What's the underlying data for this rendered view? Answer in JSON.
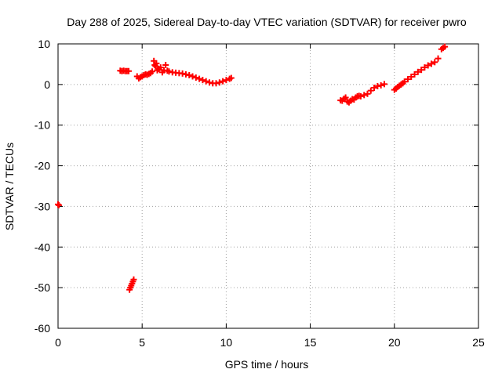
{
  "chart_data": {
    "type": "scatter",
    "title": "Day 288 of 2025, Sidereal Day-to-day VTEC variation (SDTVAR) for receiver pwro",
    "xlabel": "GPS time / hours",
    "ylabel": "SDTVAR / TECUs",
    "xlim": [
      0,
      25
    ],
    "ylim": [
      -60,
      10
    ],
    "x_ticks": [
      0,
      5,
      10,
      15,
      20,
      25
    ],
    "y_ticks": [
      -60,
      -50,
      -40,
      -30,
      -20,
      -10,
      0,
      10
    ],
    "grid": true,
    "marker": "plus",
    "color": "#ff0000",
    "series": [
      {
        "name": "SDTVAR",
        "points": [
          [
            0.0,
            -29.5
          ],
          [
            0.05,
            -29.7
          ],
          [
            3.7,
            3.4
          ],
          [
            3.8,
            3.3
          ],
          [
            3.9,
            3.4
          ],
          [
            4.0,
            3.3
          ],
          [
            4.1,
            3.3
          ],
          [
            4.2,
            3.3
          ],
          [
            4.25,
            -50.5
          ],
          [
            4.3,
            -50.0
          ],
          [
            4.35,
            -49.5
          ],
          [
            4.4,
            -49.0
          ],
          [
            4.45,
            -48.5
          ],
          [
            4.5,
            -48.0
          ],
          [
            4.7,
            2.0
          ],
          [
            4.8,
            1.5
          ],
          [
            4.9,
            1.8
          ],
          [
            5.0,
            2.0
          ],
          [
            5.1,
            2.3
          ],
          [
            5.2,
            2.5
          ],
          [
            5.3,
            2.4
          ],
          [
            5.4,
            2.6
          ],
          [
            5.5,
            2.8
          ],
          [
            5.6,
            3.2
          ],
          [
            5.7,
            5.8
          ],
          [
            5.75,
            4.8
          ],
          [
            5.8,
            4.5
          ],
          [
            5.85,
            5.2
          ],
          [
            5.9,
            3.5
          ],
          [
            6.0,
            3.8
          ],
          [
            6.1,
            4.2
          ],
          [
            6.2,
            3.0
          ],
          [
            6.3,
            3.5
          ],
          [
            6.4,
            4.8
          ],
          [
            6.5,
            3.4
          ],
          [
            6.6,
            3.2
          ],
          [
            6.8,
            3.0
          ],
          [
            7.0,
            2.9
          ],
          [
            7.2,
            2.8
          ],
          [
            7.4,
            2.7
          ],
          [
            7.6,
            2.5
          ],
          [
            7.8,
            2.3
          ],
          [
            8.0,
            2.0
          ],
          [
            8.2,
            1.7
          ],
          [
            8.4,
            1.4
          ],
          [
            8.6,
            1.1
          ],
          [
            8.8,
            0.8
          ],
          [
            9.0,
            0.5
          ],
          [
            9.2,
            0.3
          ],
          [
            9.4,
            0.3
          ],
          [
            9.6,
            0.5
          ],
          [
            9.8,
            0.8
          ],
          [
            10.0,
            1.1
          ],
          [
            10.2,
            1.4
          ],
          [
            10.3,
            1.6
          ],
          [
            16.8,
            -3.9
          ],
          [
            16.9,
            -4.0
          ],
          [
            17.0,
            -3.5
          ],
          [
            17.1,
            -3.2
          ],
          [
            17.2,
            -4.2
          ],
          [
            17.3,
            -4.4
          ],
          [
            17.4,
            -4.0
          ],
          [
            17.5,
            -3.6
          ],
          [
            17.6,
            -3.7
          ],
          [
            17.7,
            -3.2
          ],
          [
            17.8,
            -2.9
          ],
          [
            17.9,
            -2.8
          ],
          [
            18.0,
            -2.9
          ],
          [
            18.2,
            -2.6
          ],
          [
            18.4,
            -2.3
          ],
          [
            18.6,
            -1.5
          ],
          [
            18.8,
            -0.8
          ],
          [
            19.0,
            -0.4
          ],
          [
            19.2,
            -0.2
          ],
          [
            19.4,
            0.1
          ],
          [
            20.0,
            -1.3
          ],
          [
            20.1,
            -1.0
          ],
          [
            20.2,
            -0.6
          ],
          [
            20.3,
            -0.3
          ],
          [
            20.4,
            0.0
          ],
          [
            20.5,
            0.3
          ],
          [
            20.6,
            0.7
          ],
          [
            20.8,
            1.3
          ],
          [
            21.0,
            1.9
          ],
          [
            21.2,
            2.5
          ],
          [
            21.4,
            3.1
          ],
          [
            21.6,
            3.6
          ],
          [
            21.8,
            4.2
          ],
          [
            22.0,
            4.7
          ],
          [
            22.2,
            5.1
          ],
          [
            22.4,
            5.5
          ],
          [
            22.6,
            6.4
          ],
          [
            22.8,
            8.7
          ],
          [
            22.9,
            9.0
          ],
          [
            23.0,
            9.3
          ]
        ]
      }
    ]
  }
}
